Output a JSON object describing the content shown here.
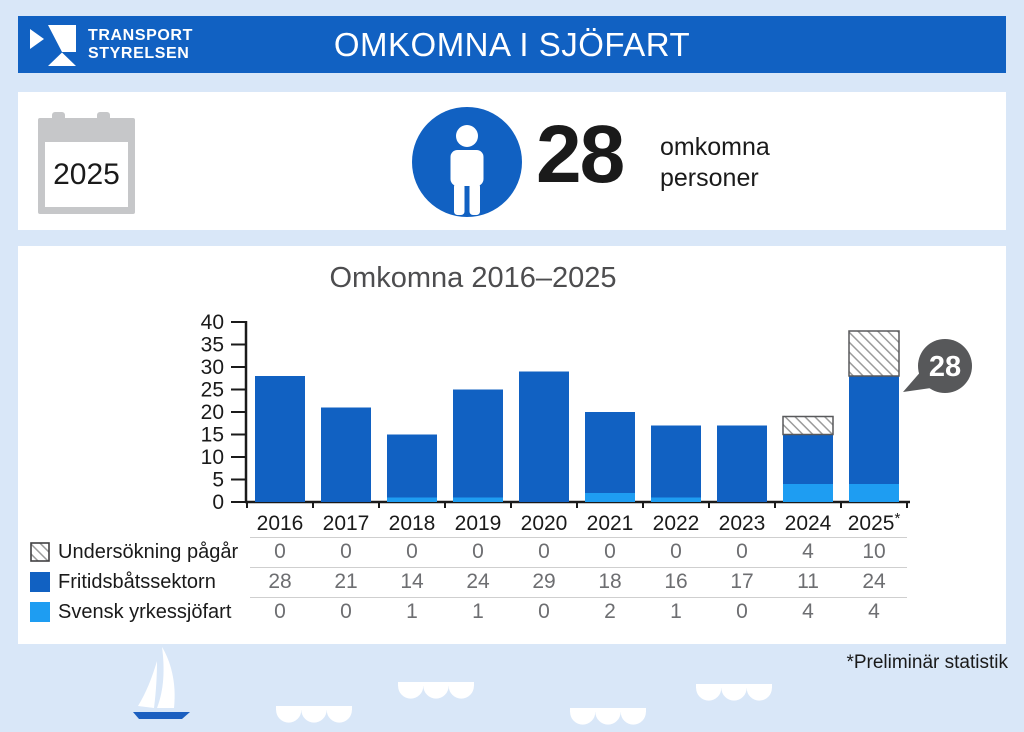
{
  "header": {
    "logo_line1": "TRANSPORT",
    "logo_line2": "STYRELSEN",
    "title": "OMKOMNA I SJÖFART"
  },
  "summary": {
    "year": "2025",
    "count": "28",
    "label_line1": "omkomna",
    "label_line2": "personer"
  },
  "chart_data": {
    "type": "bar",
    "stacked": true,
    "title": "Omkomna 2016–2025",
    "categories": [
      "2016",
      "2017",
      "2018",
      "2019",
      "2020",
      "2021",
      "2022",
      "2023",
      "2024",
      "2025"
    ],
    "series": [
      {
        "name": "Svensk yrkessjöfart",
        "color": "#1e9df2",
        "values": [
          0,
          0,
          1,
          1,
          0,
          2,
          1,
          0,
          4,
          4
        ]
      },
      {
        "name": "Fritidsbåtssektorn",
        "color": "#1161c2",
        "values": [
          28,
          21,
          14,
          24,
          29,
          18,
          16,
          17,
          11,
          24
        ]
      },
      {
        "name": "Undersökning pågår",
        "color": "hatch",
        "values": [
          0,
          0,
          0,
          0,
          0,
          0,
          0,
          0,
          4,
          10
        ]
      }
    ],
    "legend_order": [
      "Undersökning pågår",
      "Fritidsbåtssektorn",
      "Svensk yrkessjöfart"
    ],
    "ylim": [
      0,
      40
    ],
    "yticks": [
      0,
      5,
      10,
      15,
      20,
      25,
      30,
      35,
      40
    ],
    "grid": false,
    "legend_position": "left-table-below",
    "x_note": {
      "symbol": "*",
      "category_index": 9
    },
    "callout": {
      "value": "28",
      "category_index": 9
    }
  },
  "footnote": "*Preliminär statistik",
  "colors": {
    "brand_blue": "#1161c2",
    "light_blue": "#1e9df2",
    "page_background": "#d9e7f8",
    "callout_gray": "#57585a",
    "hatch_line_gray": "#9b9b9b",
    "table_value_gray": "#6d6e71",
    "calendar_gray": "#c6c7c9"
  }
}
